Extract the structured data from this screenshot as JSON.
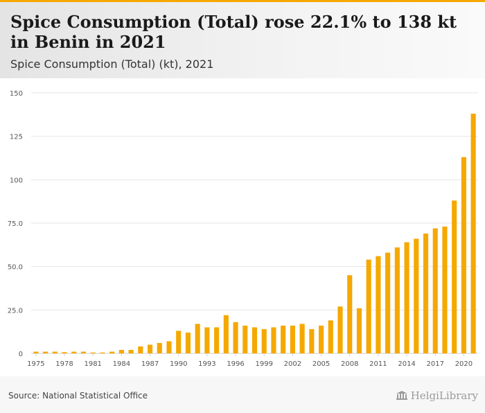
{
  "header": {
    "title": "Spice Consumption (Total) rose 22.1% to 138 kt in Benin in 2021",
    "subtitle": "Spice Consumption (Total) (kt), 2021"
  },
  "footer": {
    "source": "Source: National Statistical Office",
    "logo_text": "HelgiLibrary"
  },
  "colors": {
    "bar": "#f5a800",
    "accent": "#f5a800"
  },
  "chart_data": {
    "type": "bar",
    "title": "Spice Consumption (Total) (kt), 2021",
    "xlabel": "",
    "ylabel": "",
    "ylim": [
      0,
      150
    ],
    "yticks": [
      "0",
      "25.0",
      "50.0",
      "75.0",
      "100",
      "125",
      "150"
    ],
    "ytick_values": [
      0,
      25,
      50,
      75,
      100,
      125,
      150
    ],
    "xtick_labels": [
      "1975",
      "1978",
      "1981",
      "1984",
      "1987",
      "1990",
      "1993",
      "1996",
      "1999",
      "2002",
      "2005",
      "2008",
      "2011",
      "2014",
      "2017",
      "2020"
    ],
    "categories": [
      "1975",
      "1976",
      "1977",
      "1978",
      "1979",
      "1980",
      "1981",
      "1982",
      "1983",
      "1984",
      "1985",
      "1986",
      "1987",
      "1988",
      "1989",
      "1990",
      "1991",
      "1992",
      "1993",
      "1994",
      "1995",
      "1996",
      "1997",
      "1998",
      "1999",
      "2000",
      "2001",
      "2002",
      "2003",
      "2004",
      "2005",
      "2006",
      "2007",
      "2008",
      "2009",
      "2010",
      "2011",
      "2012",
      "2013",
      "2014",
      "2015",
      "2016",
      "2017",
      "2018",
      "2019",
      "2020",
      "2021"
    ],
    "values": [
      1.0,
      1.0,
      1.0,
      0.7,
      1.0,
      1.0,
      0.5,
      0.5,
      1.0,
      2.0,
      2.0,
      4.0,
      5.0,
      6.0,
      7.0,
      13.0,
      12.0,
      17.0,
      15.0,
      15.0,
      22.0,
      18.0,
      16.0,
      15.0,
      14.0,
      15.0,
      16.0,
      16.0,
      17.0,
      14.0,
      16.0,
      19.0,
      27.0,
      45.0,
      26.0,
      54.0,
      56.0,
      58.0,
      61.0,
      64.0,
      66.0,
      69.0,
      72.0,
      73.0,
      88.0,
      113.0,
      138.0
    ],
    "grid": true,
    "legend": "none"
  }
}
